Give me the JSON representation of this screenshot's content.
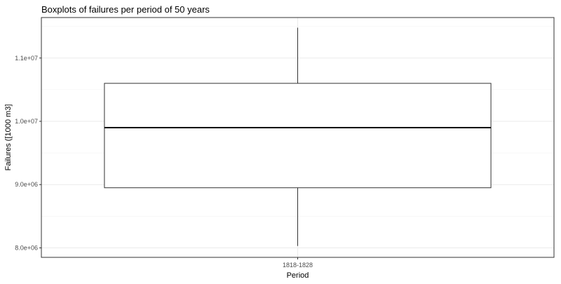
{
  "chart_data": {
    "type": "box",
    "title": "Boxplots of failures per period of 50 years",
    "xlabel": "Period",
    "ylabel": "Failures ([1000 m3]",
    "categories": [
      "1818-1828"
    ],
    "boxes": [
      {
        "category": "1818-1828",
        "whisker_low": 8030000,
        "q1": 8950000,
        "median": 9900000,
        "q3": 10600000,
        "whisker_high": 11480000
      }
    ],
    "ylim": [
      7850000,
      11640000
    ],
    "yticks": [
      8000000,
      9000000,
      10000000,
      11000000
    ],
    "ytick_labels": [
      "8.0e+06",
      "9.0e+06",
      "1.0e+07",
      "1.1e+07"
    ],
    "grid": true,
    "colors": {
      "box_fill": "#ffffff",
      "box_stroke": "#333333",
      "grid_major": "#ebebeb",
      "grid_minor": "#f3f3f3",
      "text": "#000000",
      "tick_text": "#4d4d4d"
    }
  }
}
